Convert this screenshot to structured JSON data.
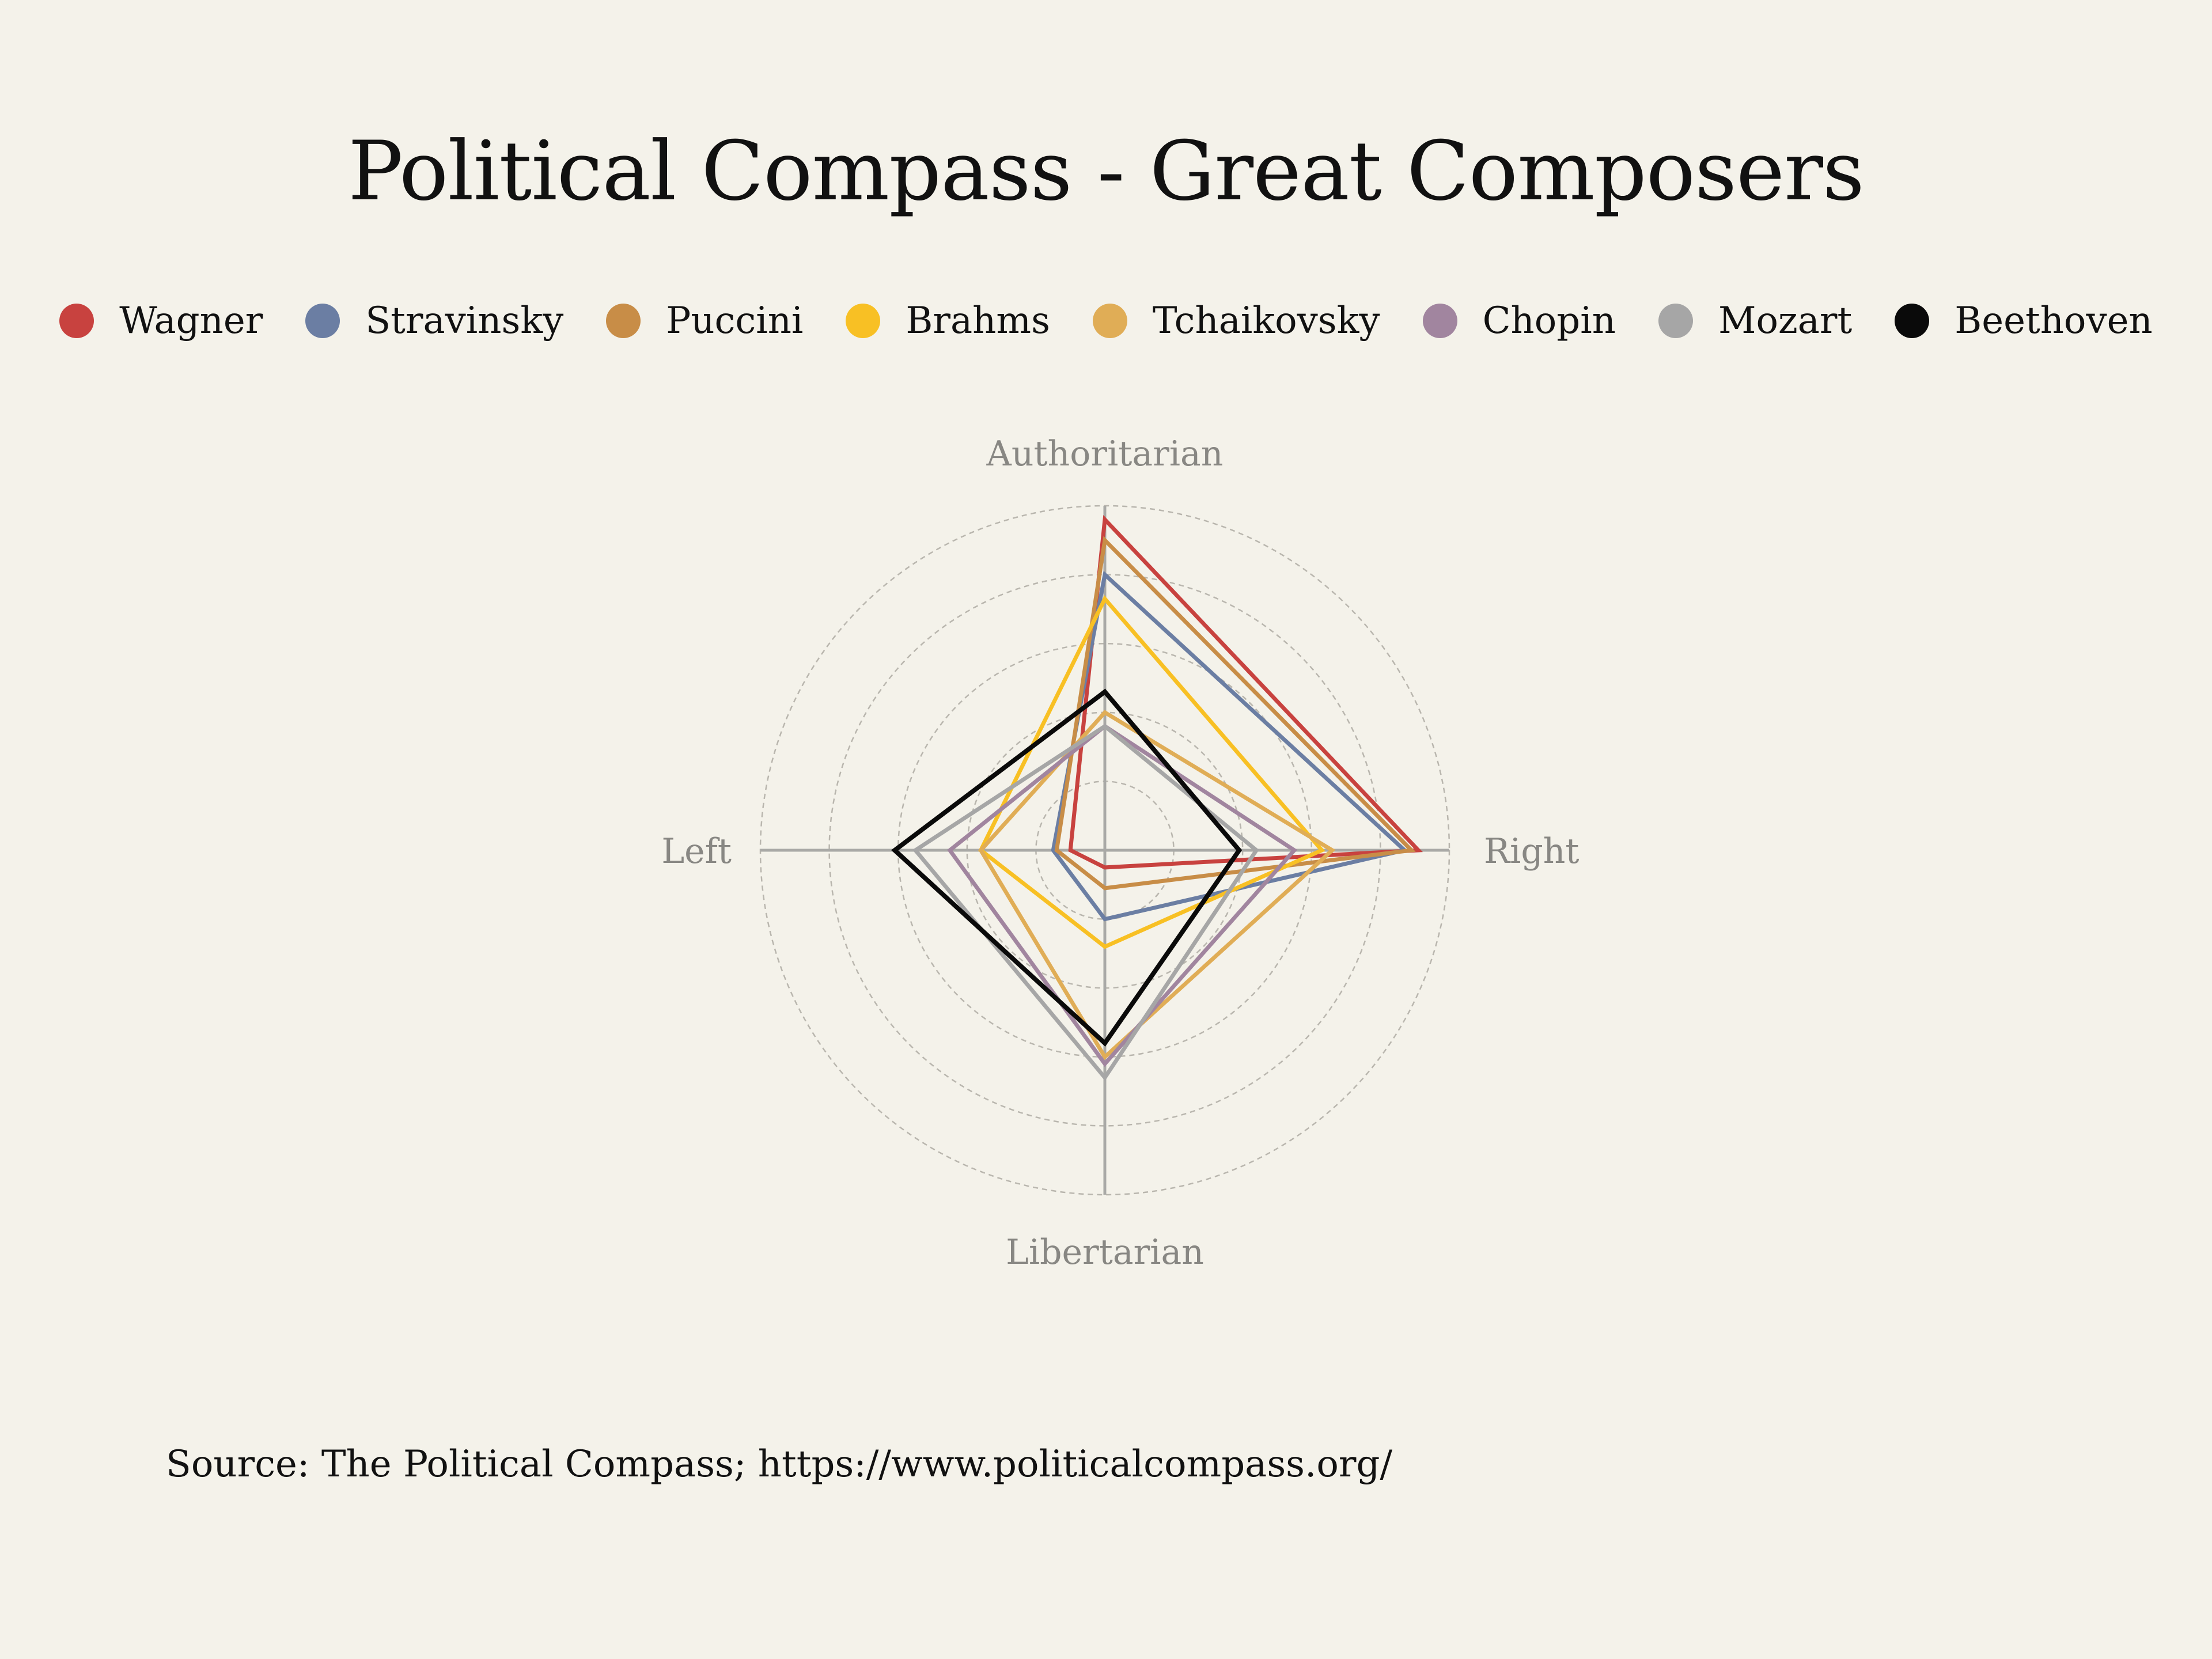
{
  "title": "Political Compass - Great Composers",
  "source": "Source: The Political Compass; https://www.politicalcompass.org/",
  "chart_data": {
    "type": "radar",
    "title": "Political Compass - Great Composers",
    "axes": [
      "Authoritarian",
      "Right",
      "Libertarian",
      "Left"
    ],
    "rmax": 10,
    "grid_rings": [
      2,
      4,
      6,
      8,
      10
    ],
    "grid_style": "dashed",
    "legend_position": "top",
    "series": [
      {
        "name": "Wagner",
        "color": "#c8423f",
        "values": [
          9.6,
          9.1,
          0.5,
          1.0
        ]
      },
      {
        "name": "Stravinsky",
        "color": "#6b7ea3",
        "values": [
          8.0,
          8.7,
          2.0,
          1.5
        ]
      },
      {
        "name": "Puccini",
        "color": "#c88d47",
        "values": [
          9.0,
          8.9,
          1.1,
          1.4
        ]
      },
      {
        "name": "Brahms",
        "color": "#f8c024",
        "values": [
          7.3,
          6.3,
          2.8,
          3.6
        ]
      },
      {
        "name": "Tchaikovsky",
        "color": "#e0ad56",
        "values": [
          4.0,
          6.6,
          6.0,
          3.6
        ]
      },
      {
        "name": "Chopin",
        "color": "#a1859f",
        "values": [
          3.6,
          5.5,
          6.2,
          4.5
        ]
      },
      {
        "name": "Mozart",
        "color": "#a6a6a6",
        "values": [
          3.6,
          4.4,
          6.6,
          5.5
        ]
      },
      {
        "name": "Beethoven",
        "color": "#0a0a0a",
        "values": [
          4.6,
          3.9,
          5.6,
          6.1
        ]
      }
    ]
  }
}
